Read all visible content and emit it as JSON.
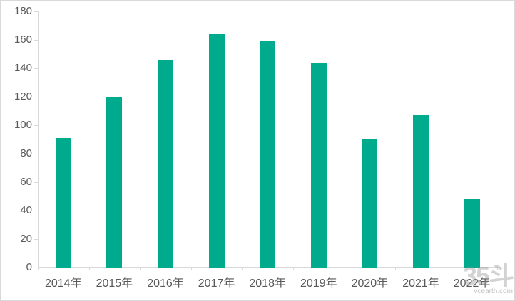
{
  "chart_data": {
    "type": "bar",
    "title": "",
    "xlabel": "",
    "ylabel": "",
    "categories": [
      "2014年",
      "2015年",
      "2016年",
      "2017年",
      "2018年",
      "2019年",
      "2020年",
      "2021年",
      "2022年"
    ],
    "values": [
      91,
      120,
      146,
      164,
      159,
      144,
      90,
      107,
      48
    ],
    "ylim": [
      0,
      180
    ],
    "ytick_step": 20,
    "yticks": [
      0,
      20,
      40,
      60,
      80,
      100,
      120,
      140,
      160,
      180
    ],
    "grid": false,
    "legend": null,
    "bar_color": "#00AB8D",
    "axis_color": "#D9D9D9",
    "tick_label_color": "#595959"
  },
  "watermark": {
    "logo": "35斗",
    "site": "vcearth.com"
  }
}
